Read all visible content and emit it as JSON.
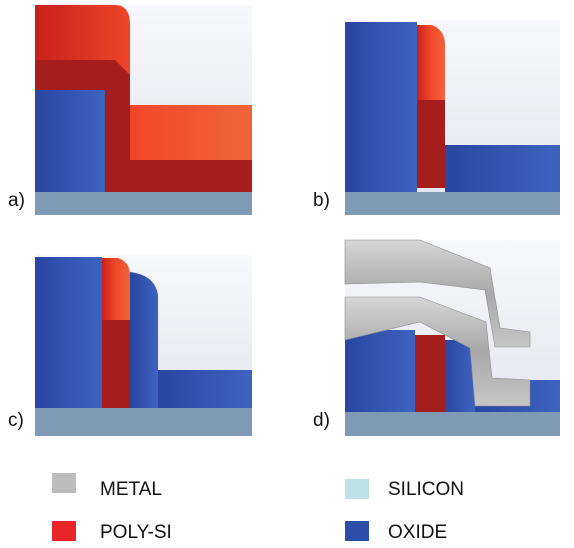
{
  "panels": [
    {
      "label": "a)"
    },
    {
      "label": "b)"
    },
    {
      "label": "c)"
    },
    {
      "label": "d)"
    }
  ],
  "legend": [
    {
      "label": "METAL",
      "color": "#bcbcbc"
    },
    {
      "label": "POLY-SI",
      "color": "#e8262a"
    },
    {
      "label": "SILICON",
      "color": "#bde3e6"
    },
    {
      "label": "OXIDE",
      "color": "#2b4ea6"
    }
  ]
}
